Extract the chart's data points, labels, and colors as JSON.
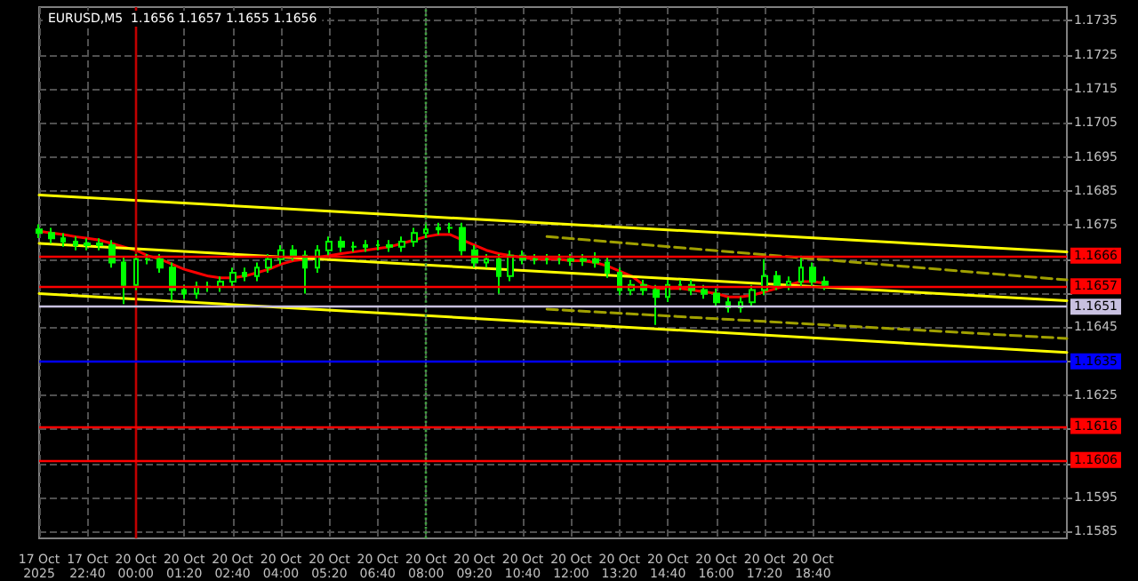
{
  "chart_data": {
    "type": "candlestick",
    "title": "EURUSD,M5  1.1656 1.1657 1.1655 1.1656",
    "categories": [
      "17 Oct 2025",
      null,
      null,
      null,
      "17 Oct 22:40",
      null,
      null,
      null,
      "20 Oct 00:00",
      null,
      null,
      null,
      "20 Oct 01:20",
      null,
      null,
      null,
      "20 Oct 02:40",
      null,
      null,
      null,
      "20 Oct 04:00",
      null,
      null,
      null,
      "20 Oct 05:20",
      null,
      null,
      null,
      "20 Oct 06:40",
      null,
      null,
      null,
      "20 Oct 08:00",
      null,
      null,
      null,
      "20 Oct 09:20",
      null,
      null,
      null,
      "20 Oct 10:40",
      null,
      null,
      null,
      "20 Oct 12:00",
      null,
      null,
      null,
      "20 Oct 13:20",
      null,
      null,
      null,
      "20 Oct 14:40",
      null,
      null,
      null,
      "20 Oct 16:00",
      null,
      null,
      null,
      "20 Oct 17:20",
      null,
      null,
      null,
      "20 Oct 18:40",
      null,
      null,
      null,
      null,
      null,
      null,
      null,
      null,
      null,
      null,
      null,
      null,
      null,
      null,
      null,
      null,
      null,
      null,
      null,
      null,
      null
    ],
    "color": "#00ff00",
    "ohlc": [
      [
        1.16737,
        1.16752,
        1.16712,
        1.16727
      ],
      [
        1.16727,
        1.16742,
        1.16696,
        1.16711
      ],
      [
        1.16711,
        1.16726,
        1.16686,
        1.16701
      ],
      [
        1.16701,
        1.16716,
        1.16676,
        1.16691
      ],
      [
        1.16691,
        1.16711,
        1.16676,
        1.16696
      ],
      [
        1.16696,
        1.16711,
        1.16676,
        1.16691
      ],
      [
        1.16691,
        1.16706,
        1.16625,
        1.1664
      ],
      [
        1.1664,
        1.16655,
        1.16518,
        1.16574
      ],
      [
        1.16574,
        1.16665,
        1.16559,
        1.1665
      ],
      [
        1.1665,
        1.16665,
        1.16635,
        1.1665
      ],
      [
        1.1665,
        1.16665,
        1.1661,
        1.16625
      ],
      [
        1.16625,
        1.1664,
        1.16528,
        1.16559
      ],
      [
        1.16559,
        1.16574,
        1.16534,
        1.16549
      ],
      [
        1.16549,
        1.16584,
        1.16534,
        1.16569
      ],
      [
        1.16569,
        1.16584,
        1.16554,
        1.16569
      ],
      [
        1.16569,
        1.16599,
        1.16554,
        1.16584
      ],
      [
        1.16584,
        1.16625,
        1.16569,
        1.1661
      ],
      [
        1.1661,
        1.16625,
        1.16585,
        1.166
      ],
      [
        1.166,
        1.1664,
        1.16585,
        1.16625
      ],
      [
        1.16625,
        1.16665,
        1.1661,
        1.1665
      ],
      [
        1.1665,
        1.16691,
        1.16635,
        1.16676
      ],
      [
        1.16676,
        1.16691,
        1.16645,
        1.1666
      ],
      [
        1.1666,
        1.16675,
        1.16549,
        1.16625
      ],
      [
        1.16625,
        1.16691,
        1.1661,
        1.16676
      ],
      [
        1.16676,
        1.16716,
        1.16661,
        1.16701
      ],
      [
        1.16701,
        1.16716,
        1.16671,
        1.16686
      ],
      [
        1.16686,
        1.16701,
        1.16671,
        1.16686
      ],
      [
        1.16686,
        1.16706,
        1.16671,
        1.16691
      ],
      [
        1.16691,
        1.16706,
        1.16676,
        1.16691
      ],
      [
        1.16691,
        1.16706,
        1.16671,
        1.16686
      ],
      [
        1.16686,
        1.16716,
        1.16671,
        1.16701
      ],
      [
        1.16701,
        1.16742,
        1.16686,
        1.16727
      ],
      [
        1.16727,
        1.16752,
        1.16712,
        1.16737
      ],
      [
        1.16737,
        1.16757,
        1.16722,
        1.16742
      ],
      [
        1.16742,
        1.16757,
        1.16727,
        1.16742
      ],
      [
        1.16742,
        1.16757,
        1.16661,
        1.16676
      ],
      [
        1.16676,
        1.16691,
        1.16625,
        1.1664
      ],
      [
        1.1664,
        1.16665,
        1.16625,
        1.1665
      ],
      [
        1.1665,
        1.16665,
        1.16549,
        1.166
      ],
      [
        1.166,
        1.16675,
        1.16585,
        1.1666
      ],
      [
        1.1666,
        1.16675,
        1.16635,
        1.1665
      ],
      [
        1.1665,
        1.16665,
        1.16635,
        1.1665
      ],
      [
        1.1665,
        1.16665,
        1.16635,
        1.1665
      ],
      [
        1.1665,
        1.16665,
        1.16635,
        1.1665
      ],
      [
        1.1665,
        1.16665,
        1.1663,
        1.16645
      ],
      [
        1.16645,
        1.16665,
        1.1663,
        1.1665
      ],
      [
        1.1665,
        1.1667,
        1.16625,
        1.1664
      ],
      [
        1.1664,
        1.16655,
        1.16595,
        1.1661
      ],
      [
        1.1661,
        1.16625,
        1.16544,
        1.16559
      ],
      [
        1.16559,
        1.16589,
        1.16544,
        1.16574
      ],
      [
        1.16574,
        1.16589,
        1.16544,
        1.16559
      ],
      [
        1.16559,
        1.16574,
        1.16457,
        1.16539
      ],
      [
        1.16539,
        1.16589,
        1.16524,
        1.16574
      ],
      [
        1.16574,
        1.16589,
        1.16559,
        1.16574
      ],
      [
        1.16574,
        1.16589,
        1.16544,
        1.16559
      ],
      [
        1.16559,
        1.16574,
        1.16534,
        1.16549
      ],
      [
        1.16549,
        1.16564,
        1.16508,
        1.16523
      ],
      [
        1.16523,
        1.16538,
        1.16493,
        1.16508
      ],
      [
        1.16508,
        1.16538,
        1.16493,
        1.16523
      ],
      [
        1.16523,
        1.16574,
        1.16508,
        1.16559
      ],
      [
        1.16559,
        1.1665,
        1.16544,
        1.166
      ],
      [
        1.166,
        1.16615,
        1.16559,
        1.16574
      ],
      [
        1.16574,
        1.16599,
        1.16559,
        1.16584
      ],
      [
        1.16584,
        1.1666,
        1.16569,
        1.16625
      ],
      [
        1.16625,
        1.1664,
        1.16569,
        1.16584
      ],
      [
        1.16584,
        1.16599,
        1.16559,
        1.16574
      ],
      null,
      null,
      null,
      null,
      null,
      null,
      null,
      null,
      null,
      null,
      null,
      null,
      null,
      null,
      null,
      null,
      null,
      null,
      null,
      null
    ],
    "series": [
      {
        "type": "line",
        "color": "#ff0000",
        "values": [
          1.16732,
          1.16727,
          1.16722,
          1.16716,
          1.16711,
          1.16706,
          1.16696,
          1.16686,
          1.16676,
          1.1666,
          1.1665,
          1.16635,
          1.1662,
          1.1661,
          1.166,
          1.16595,
          1.16595,
          1.166,
          1.1661,
          1.1662,
          1.16635,
          1.16645,
          1.1665,
          1.16655,
          1.1666,
          1.16666,
          1.16671,
          1.16676,
          1.16681,
          1.16686,
          1.16696,
          1.16706,
          1.16716,
          1.16722,
          1.16722,
          1.16706,
          1.16691,
          1.16676,
          1.16666,
          1.1666,
          1.16655,
          1.1665,
          1.1665,
          1.1665,
          1.16645,
          1.16645,
          1.1664,
          1.1663,
          1.16615,
          1.166,
          1.16574,
          1.16564,
          1.16564,
          1.16564,
          1.16559,
          1.16554,
          1.16549,
          1.16539,
          1.16539,
          1.16544,
          1.16554,
          1.16564,
          1.16574,
          1.16584,
          1.16584,
          1.16579,
          null,
          null,
          null,
          null,
          null,
          null,
          null,
          null,
          null,
          null,
          null,
          null,
          null,
          null,
          null,
          null,
          null,
          null,
          null,
          null
        ]
      },
      {
        "type": "line",
        "color": "#ffff00",
        "values": [
          1.16838,
          null,
          null,
          null,
          null,
          null,
          null,
          null,
          null,
          null,
          null,
          null,
          null,
          null,
          null,
          null,
          null,
          null,
          null,
          null,
          null,
          null,
          null,
          null,
          null,
          null,
          null,
          null,
          null,
          null,
          null,
          null,
          null,
          null,
          null,
          null,
          null,
          null,
          null,
          null,
          null,
          null,
          null,
          null,
          null,
          null,
          null,
          null,
          null,
          null,
          null,
          null,
          null,
          null,
          null,
          null,
          null,
          null,
          null,
          null,
          null,
          null,
          null,
          null,
          null,
          null,
          null,
          null,
          null,
          null,
          null,
          null,
          null,
          null,
          null,
          null,
          null,
          null,
          null,
          null,
          null,
          null,
          null,
          null,
          null,
          1.16671
        ]
      },
      {
        "type": "line",
        "color": "#ffff00",
        "values": [
          1.16696,
          null,
          null,
          null,
          null,
          null,
          null,
          null,
          null,
          null,
          null,
          null,
          null,
          null,
          null,
          null,
          null,
          null,
          null,
          null,
          null,
          null,
          null,
          null,
          null,
          null,
          null,
          null,
          null,
          null,
          null,
          null,
          null,
          null,
          null,
          null,
          null,
          null,
          null,
          null,
          null,
          null,
          null,
          null,
          null,
          null,
          null,
          null,
          null,
          null,
          null,
          null,
          null,
          null,
          null,
          null,
          null,
          null,
          null,
          null,
          null,
          null,
          null,
          null,
          null,
          null,
          null,
          null,
          null,
          null,
          null,
          null,
          null,
          null,
          null,
          null,
          null,
          null,
          null,
          null,
          null,
          null,
          null,
          null,
          null,
          1.16528
        ]
      },
      {
        "type": "line",
        "color": "#ffff00",
        "values": [
          1.16549,
          null,
          null,
          null,
          null,
          null,
          null,
          null,
          null,
          null,
          null,
          null,
          null,
          null,
          null,
          null,
          null,
          null,
          null,
          null,
          null,
          null,
          null,
          null,
          null,
          null,
          null,
          null,
          null,
          null,
          null,
          null,
          null,
          null,
          null,
          null,
          null,
          null,
          null,
          null,
          null,
          null,
          null,
          null,
          null,
          null,
          null,
          null,
          null,
          null,
          null,
          null,
          null,
          null,
          null,
          null,
          null,
          null,
          null,
          null,
          null,
          null,
          null,
          null,
          null,
          null,
          null,
          null,
          null,
          null,
          null,
          null,
          null,
          null,
          null,
          null,
          null,
          null,
          null,
          null,
          null,
          null,
          null,
          null,
          null,
          1.16376
        ]
      },
      {
        "type": "line",
        "color": "#a0a000",
        "line_style": "dashed",
        "values": [
          null,
          null,
          null,
          null,
          null,
          null,
          null,
          null,
          null,
          null,
          null,
          null,
          null,
          null,
          null,
          null,
          null,
          null,
          null,
          null,
          null,
          null,
          null,
          null,
          null,
          null,
          null,
          null,
          null,
          null,
          null,
          null,
          null,
          null,
          null,
          null,
          null,
          null,
          null,
          null,
          null,
          null,
          1.16716,
          null,
          null,
          null,
          null,
          null,
          null,
          null,
          null,
          null,
          null,
          null,
          null,
          null,
          null,
          null,
          null,
          null,
          null,
          null,
          null,
          null,
          null,
          null,
          null,
          null,
          null,
          null,
          null,
          null,
          null,
          null,
          null,
          null,
          null,
          null,
          null,
          null,
          null,
          null,
          null,
          null,
          null,
          1.16589
        ]
      },
      {
        "type": "line",
        "color": "#a0a000",
        "line_style": "dashed",
        "values": [
          null,
          null,
          null,
          null,
          null,
          null,
          null,
          null,
          null,
          null,
          null,
          null,
          null,
          null,
          null,
          null,
          null,
          null,
          null,
          null,
          null,
          null,
          null,
          null,
          null,
          null,
          null,
          null,
          null,
          null,
          null,
          null,
          null,
          null,
          null,
          null,
          null,
          null,
          null,
          null,
          null,
          null,
          1.16503,
          null,
          null,
          null,
          null,
          null,
          null,
          null,
          null,
          null,
          null,
          null,
          null,
          null,
          null,
          null,
          null,
          null,
          null,
          null,
          null,
          null,
          null,
          null,
          null,
          null,
          null,
          null,
          null,
          null,
          null,
          null,
          null,
          null,
          null,
          null,
          null,
          null,
          null,
          null,
          null,
          null,
          null,
          1.16417
        ]
      }
    ],
    "ylim": [
      1.1583,
      1.1739
    ],
    "yticks": [
      1.1585,
      1.1595,
      {
        "value": 1.1605,
        "label": null
      },
      {
        "value": 1.1615,
        "label": null
      },
      1.1625,
      {
        "value": 1.1635,
        "label": null
      },
      1.1645,
      {
        "value": 1.1655,
        "label": null
      },
      {
        "value": 1.1665,
        "label": null
      },
      1.1675,
      1.1685,
      1.1695,
      1.1705,
      1.1715,
      1.1725,
      1.1735
    ],
    "ref_lines": [
      {
        "axis": "y",
        "value": 1.1666,
        "label": "1.1666",
        "color": "#ff0000"
      },
      {
        "axis": "y",
        "value": 1.1657,
        "label": "1.1657",
        "color": "#ff0000"
      },
      {
        "axis": "y",
        "value": 1.1651,
        "label": "1.1651",
        "color": "#c8c0e0"
      },
      {
        "axis": "y",
        "value": 1.1635,
        "label": "1.1635",
        "color": "#0000ff"
      },
      {
        "axis": "y",
        "value": 1.1616,
        "label": "1.1616",
        "color": "#ff0000"
      },
      {
        "axis": "y",
        "value": 1.1606,
        "label": "1.1606",
        "color": "#ff0000"
      },
      {
        "axis": "x",
        "value": "20 Oct 00:00",
        "label": null,
        "color": "#c00000"
      },
      {
        "axis": "x",
        "value": "20 Oct 08:00",
        "label": null,
        "color": "#40a040",
        "line_style": "dotted"
      }
    ],
    "grid": true,
    "marker": "none"
  }
}
